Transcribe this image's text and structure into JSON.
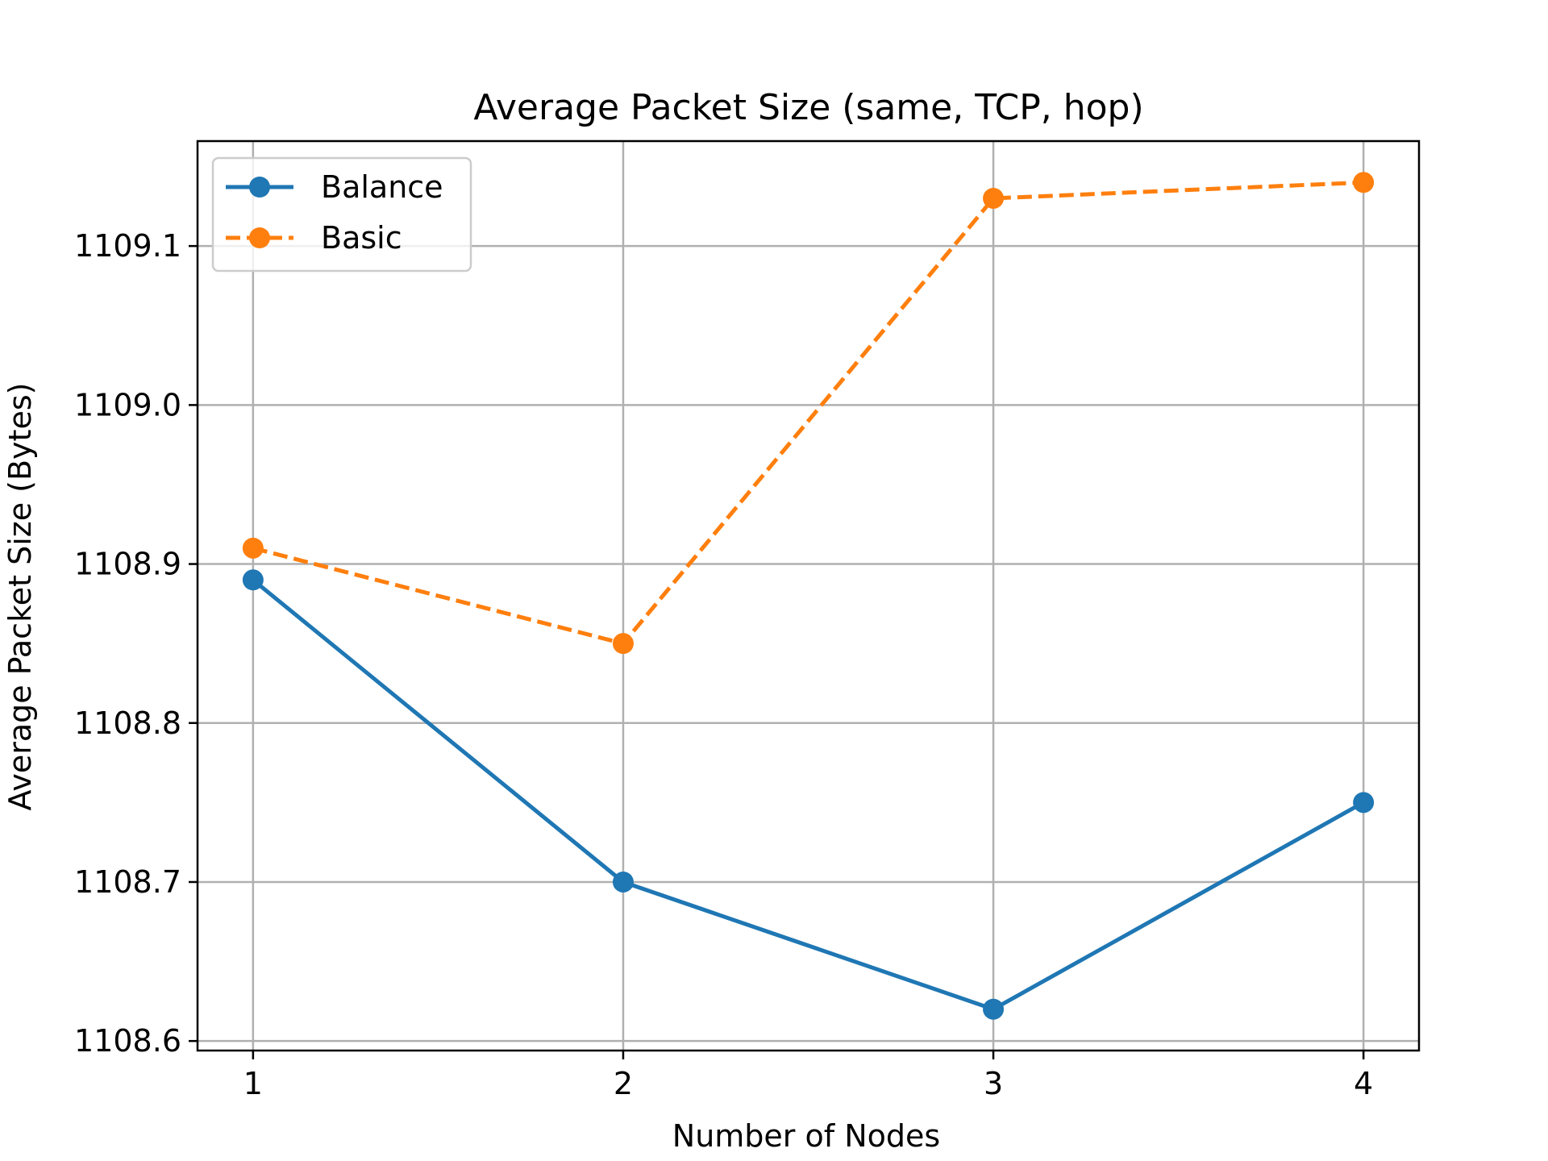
{
  "chart_data": {
    "type": "line",
    "title": "Average Packet Size (same, TCP, hop)",
    "xlabel": "Number of Nodes",
    "ylabel": "Average Packet Size (Bytes)",
    "x": [
      1,
      2,
      3,
      4
    ],
    "x_ticks": [
      "1",
      "2",
      "3",
      "4"
    ],
    "xlim": [
      0.85,
      4.15
    ],
    "y_ticks": [
      "1108.6",
      "1108.7",
      "1108.8",
      "1108.9",
      "1109.0",
      "1109.1"
    ],
    "y_tick_values": [
      1108.6,
      1108.7,
      1108.8,
      1108.9,
      1109.0,
      1109.1
    ],
    "ylim": [
      1108.594,
      1109.166
    ],
    "grid": true,
    "legend_position": "top-left",
    "series": [
      {
        "name": "Balance",
        "values": [
          1108.89,
          1108.7,
          1108.62,
          1108.75
        ],
        "color": "#1f77b4",
        "line_style": "solid",
        "marker": "circle"
      },
      {
        "name": "Basic",
        "values": [
          1108.91,
          1108.85,
          1109.13,
          1109.14
        ],
        "color": "#ff7f0e",
        "line_style": "dashed",
        "marker": "circle"
      }
    ]
  }
}
